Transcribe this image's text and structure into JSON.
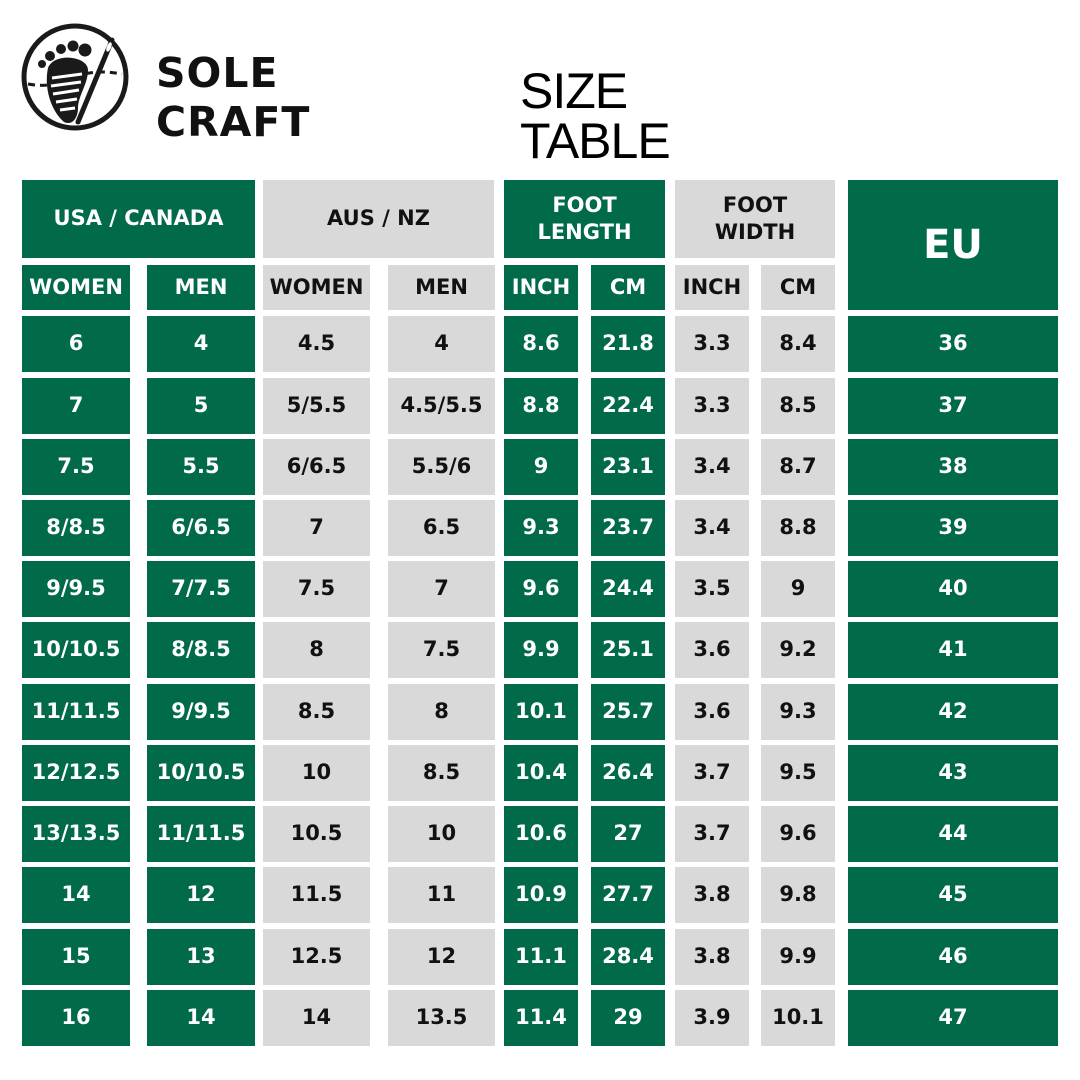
{
  "brand": {
    "line1": "SOLE",
    "line2": "CRAFT",
    "logo_icon": "footprint-needle-icon"
  },
  "title": "SIZE TABLE",
  "colors": {
    "green": "#006a4a",
    "gray": "#d9d9d9"
  },
  "groups": {
    "usa": "USA / CANADA",
    "aus": "AUS / NZ",
    "length": "FOOT\nLENGTH",
    "width": "FOOT\nWIDTH",
    "eu": "EU"
  },
  "subheaders": [
    "WOMEN",
    "MEN",
    "WOMEN",
    "MEN",
    "INCH",
    "CM",
    "INCH",
    "CM"
  ],
  "rows": [
    [
      "6",
      "4",
      "4.5",
      "4",
      "8.6",
      "21.8",
      "3.3",
      "8.4",
      "36"
    ],
    [
      "7",
      "5",
      "5/5.5",
      "4.5/5.5",
      "8.8",
      "22.4",
      "3.3",
      "8.5",
      "37"
    ],
    [
      "7.5",
      "5.5",
      "6/6.5",
      "5.5/6",
      "9",
      "23.1",
      "3.4",
      "8.7",
      "38"
    ],
    [
      "8/8.5",
      "6/6.5",
      "7",
      "6.5",
      "9.3",
      "23.7",
      "3.4",
      "8.8",
      "39"
    ],
    [
      "9/9.5",
      "7/7.5",
      "7.5",
      "7",
      "9.6",
      "24.4",
      "3.5",
      "9",
      "40"
    ],
    [
      "10/10.5",
      "8/8.5",
      "8",
      "7.5",
      "9.9",
      "25.1",
      "3.6",
      "9.2",
      "41"
    ],
    [
      "11/11.5",
      "9/9.5",
      "8.5",
      "8",
      "10.1",
      "25.7",
      "3.6",
      "9.3",
      "42"
    ],
    [
      "12/12.5",
      "10/10.5",
      "10",
      "8.5",
      "10.4",
      "26.4",
      "3.7",
      "9.5",
      "43"
    ],
    [
      "13/13.5",
      "11/11.5",
      "10.5",
      "10",
      "10.6",
      "27",
      "3.7",
      "9.6",
      "44"
    ],
    [
      "14",
      "12",
      "11.5",
      "11",
      "10.9",
      "27.7",
      "3.8",
      "9.8",
      "45"
    ],
    [
      "15",
      "13",
      "12.5",
      "12",
      "11.1",
      "28.4",
      "3.8",
      "9.9",
      "46"
    ],
    [
      "16",
      "14",
      "14",
      "13.5",
      "11.4",
      "29",
      "3.9",
      "10.1",
      "47"
    ]
  ]
}
